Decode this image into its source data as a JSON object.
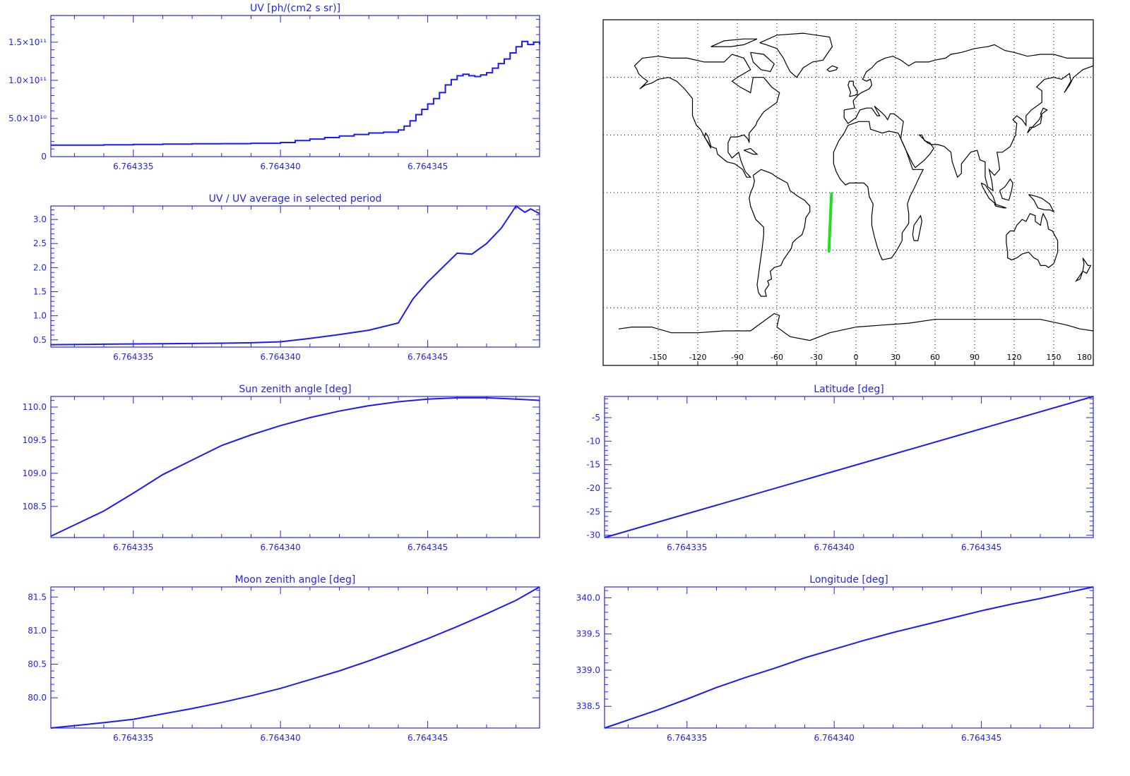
{
  "colors": {
    "axis": "#2323ff",
    "line": "#1a1aff",
    "map_ink": "#000000",
    "track": "#22dd22"
  },
  "x_ticks": [
    "6.764335",
    "6.764340",
    "6.764345"
  ],
  "chart_data": [
    {
      "id": "uv",
      "type": "line",
      "step": true,
      "title": "UV [ph/(cm2 s sr)]",
      "xlabel": "",
      "ylabel": "",
      "xlim": [
        6.7643322,
        6.7643488
      ],
      "ylim": [
        0,
        185000000000.0
      ],
      "ytick_values": [
        0,
        50000000000.0,
        100000000000.0,
        150000000000.0
      ],
      "ytick_labels": [
        "0",
        "5.0×10¹⁰",
        "1.0×10¹¹",
        "1.5×10¹¹"
      ],
      "x": [
        6.7643322,
        6.764333,
        6.764334,
        6.764335,
        6.764336,
        6.764337,
        6.764338,
        6.764339,
        6.76434,
        6.7643405,
        6.764341,
        6.7643415,
        6.764342,
        6.7643425,
        6.764343,
        6.7643435,
        6.764344,
        6.7643442,
        6.7643444,
        6.7643446,
        6.7643448,
        6.764345,
        6.7643452,
        6.7643454,
        6.7643456,
        6.7643458,
        6.764346,
        6.7643462,
        6.7643464,
        6.7643466,
        6.7643468,
        6.764347,
        6.7643472,
        6.7643474,
        6.7643476,
        6.7643478,
        6.764348,
        6.7643482,
        6.7643484,
        6.7643486,
        6.7643488
      ],
      "y": [
        15000000000.0,
        15000000000.0,
        15500000000.0,
        16000000000.0,
        16500000000.0,
        16800000000.0,
        17000000000.0,
        17500000000.0,
        18500000000.0,
        21000000000.0,
        23000000000.0,
        25000000000.0,
        27000000000.0,
        29000000000.0,
        31000000000.0,
        32000000000.0,
        35000000000.0,
        40000000000.0,
        47000000000.0,
        55000000000.0,
        62000000000.0,
        69000000000.0,
        76000000000.0,
        84000000000.0,
        94000000000.0,
        101000000000.0,
        106000000000.0,
        108000000000.0,
        106000000000.0,
        105000000000.0,
        107000000000.0,
        110000000000.0,
        116000000000.0,
        122000000000.0,
        128000000000.0,
        136000000000.0,
        144000000000.0,
        151000000000.0,
        147000000000.0,
        150000000000.0,
        147000000000.0
      ]
    },
    {
      "id": "uvratio",
      "type": "line",
      "title": "UV / UV average in selected period",
      "xlabel": "",
      "ylabel": "",
      "xlim": [
        6.7643322,
        6.7643488
      ],
      "ylim": [
        0.35,
        3.28
      ],
      "ytick_values": [
        0.5,
        1.0,
        1.5,
        2.0,
        2.5,
        3.0
      ],
      "ytick_labels": [
        "0.5",
        "1.0",
        "1.5",
        "2.0",
        "2.5",
        "3.0"
      ],
      "x": [
        6.7643322,
        6.764334,
        6.764336,
        6.764338,
        6.764339,
        6.76434,
        6.764341,
        6.764342,
        6.764343,
        6.764344,
        6.7643445,
        6.764345,
        6.764346,
        6.7643465,
        6.764347,
        6.7643475,
        6.764348,
        6.7643483,
        6.7643485,
        6.7643488
      ],
      "y": [
        0.4,
        0.41,
        0.42,
        0.43,
        0.44,
        0.46,
        0.53,
        0.61,
        0.7,
        0.85,
        1.35,
        1.7,
        2.3,
        2.28,
        2.5,
        2.82,
        3.28,
        3.15,
        3.22,
        3.12
      ]
    },
    {
      "id": "sunzenith",
      "type": "line",
      "title": "Sun zenith angle [deg]",
      "xlabel": "",
      "ylabel": "",
      "xlim": [
        6.7643322,
        6.7643488
      ],
      "ylim": [
        108.03,
        110.16
      ],
      "ytick_values": [
        108.5,
        109.0,
        109.5,
        110.0
      ],
      "ytick_labels": [
        "108.5",
        "109.0",
        "109.5",
        "110.0"
      ],
      "x": [
        6.7643322,
        6.764334,
        6.764335,
        6.764336,
        6.764337,
        6.764338,
        6.764339,
        6.76434,
        6.764341,
        6.764342,
        6.764343,
        6.764344,
        6.764345,
        6.764346,
        6.764347,
        6.764348,
        6.7643488
      ],
      "y": [
        108.05,
        108.43,
        108.7,
        108.98,
        109.2,
        109.42,
        109.58,
        109.72,
        109.84,
        109.94,
        110.02,
        110.08,
        110.12,
        110.14,
        110.14,
        110.12,
        110.1
      ]
    },
    {
      "id": "latitude",
      "type": "line",
      "title": "Latitude [deg]",
      "xlabel": "",
      "ylabel": "",
      "xlim": [
        6.7643322,
        6.7643488
      ],
      "ylim": [
        -30.5,
        -0.5
      ],
      "ytick_values": [
        -30,
        -25,
        -20,
        -15,
        -10,
        -5
      ],
      "ytick_labels": [
        "-30",
        "-25",
        "-20",
        "-15",
        "-10",
        "-5"
      ],
      "x": [
        6.7643322,
        6.7643488
      ],
      "y": [
        -30.5,
        -0.5
      ]
    },
    {
      "id": "moonzenith",
      "type": "line",
      "title": "Moon zenith angle [deg]",
      "xlabel": "",
      "ylabel": "",
      "xlim": [
        6.7643322,
        6.7643488
      ],
      "ylim": [
        79.55,
        81.65
      ],
      "ytick_values": [
        80.0,
        80.5,
        81.0,
        81.5
      ],
      "ytick_labels": [
        "80.0",
        "80.5",
        "81.0",
        "81.5"
      ],
      "x": [
        6.7643322,
        6.764334,
        6.764335,
        6.764336,
        6.764337,
        6.764338,
        6.764339,
        6.76434,
        6.764341,
        6.764342,
        6.764343,
        6.764344,
        6.764345,
        6.764346,
        6.764347,
        6.764348,
        6.7643488
      ],
      "y": [
        79.55,
        79.63,
        79.68,
        79.76,
        79.84,
        79.93,
        80.03,
        80.14,
        80.27,
        80.4,
        80.55,
        80.71,
        80.88,
        81.06,
        81.25,
        81.45,
        81.65
      ]
    },
    {
      "id": "longitude",
      "type": "line",
      "title": "Longitude [deg]",
      "xlabel": "",
      "ylabel": "",
      "xlim": [
        6.7643322,
        6.7643488
      ],
      "ylim": [
        338.2,
        340.15
      ],
      "ytick_values": [
        338.5,
        339.0,
        339.5,
        340.0
      ],
      "ytick_labels": [
        "338.5",
        "339.0",
        "339.5",
        "340.0"
      ],
      "x": [
        6.7643322,
        6.764334,
        6.764335,
        6.764336,
        6.764337,
        6.764338,
        6.764339,
        6.76434,
        6.764341,
        6.764342,
        6.764343,
        6.764344,
        6.764345,
        6.764346,
        6.764347,
        6.764348,
        6.7643488
      ],
      "y": [
        338.2,
        338.45,
        338.6,
        338.76,
        338.9,
        339.03,
        339.17,
        339.29,
        339.41,
        339.52,
        339.62,
        339.72,
        339.82,
        339.91,
        339.99,
        340.08,
        340.15
      ]
    }
  ],
  "map": {
    "type": "map",
    "projection": "equirectangular",
    "lon_ticks": [
      "-150",
      "-120",
      "-90",
      "-60",
      "-30",
      "0",
      "30",
      "60",
      "90",
      "120",
      "150",
      "180"
    ],
    "grid": true,
    "track": {
      "lon": [
        -20.5,
        -18.6
      ],
      "lat": [
        -30.5,
        -0.5
      ]
    }
  }
}
